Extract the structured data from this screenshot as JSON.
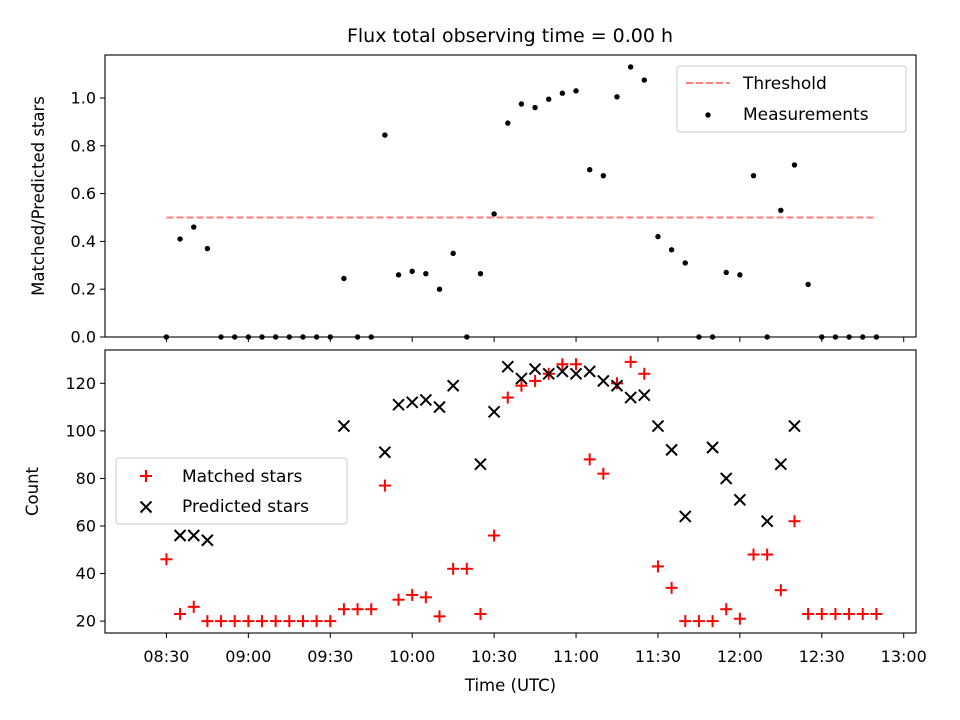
{
  "chart_data": [
    {
      "type": "scatter",
      "title": "Flux total observing time = 0.00 h",
      "ylabel": "Matched/Predicted stars",
      "ylim": [
        0,
        1.18
      ],
      "yticks": [
        "0.0",
        "0.2",
        "0.4",
        "0.6",
        "0.8",
        "1.0"
      ],
      "legend_position": "top-right",
      "threshold": {
        "name": "Threshold",
        "value": 0.5,
        "x_start": "08:30",
        "x_end": "12:50",
        "color": "#ff7f7f",
        "style": "dashed"
      },
      "series": [
        {
          "name": "Measurements",
          "color": "#000000",
          "marker": "dot",
          "x": [
            "08:30",
            "08:35",
            "08:40",
            "08:45",
            "08:50",
            "08:55",
            "09:00",
            "09:05",
            "09:10",
            "09:15",
            "09:20",
            "09:25",
            "09:30",
            "09:35",
            "09:40",
            "09:45",
            "09:50",
            "09:55",
            "10:00",
            "10:05",
            "10:10",
            "10:15",
            "10:20",
            "10:25",
            "10:30",
            "10:35",
            "10:40",
            "10:45",
            "10:50",
            "10:55",
            "11:00",
            "11:05",
            "11:10",
            "11:15",
            "11:20",
            "11:25",
            "11:30",
            "11:35",
            "11:40",
            "11:45",
            "11:50",
            "11:55",
            "12:00",
            "12:05",
            "12:10",
            "12:15",
            "12:20",
            "12:25",
            "12:30",
            "12:35",
            "12:40",
            "12:45",
            "12:50"
          ],
          "y": [
            0.0,
            0.41,
            0.46,
            0.37,
            0.0,
            0.0,
            0.0,
            0.0,
            0.0,
            0.0,
            0.0,
            0.0,
            0.0,
            0.245,
            0.0,
            0.0,
            0.845,
            0.26,
            0.275,
            0.265,
            0.2,
            0.35,
            0.0,
            0.265,
            0.515,
            0.895,
            0.975,
            0.96,
            0.995,
            1.02,
            1.03,
            0.7,
            0.675,
            1.005,
            1.13,
            1.075,
            0.42,
            0.365,
            0.31,
            0.0,
            0.0,
            0.27,
            0.26,
            0.675,
            0.0,
            0.53,
            0.72,
            0.22,
            0.0,
            0.0,
            0.0,
            0.0,
            0.0
          ]
        }
      ]
    },
    {
      "type": "scatter",
      "xlabel": "Time (UTC)",
      "ylabel": "Count",
      "ylim": [
        15,
        134
      ],
      "yticks": [
        "20",
        "40",
        "60",
        "80",
        "100",
        "120"
      ],
      "xticks": [
        "08:30",
        "09:00",
        "09:30",
        "10:00",
        "10:30",
        "11:00",
        "11:30",
        "12:00",
        "12:30",
        "13:00"
      ],
      "legend_position": "center-left",
      "series": [
        {
          "name": "Matched stars",
          "color": "#ff0000",
          "marker": "plus",
          "x": [
            "08:30",
            "08:35",
            "08:40",
            "08:45",
            "08:50",
            "08:55",
            "09:00",
            "09:05",
            "09:10",
            "09:15",
            "09:20",
            "09:25",
            "09:30",
            "09:35",
            "09:40",
            "09:45",
            "09:50",
            "09:55",
            "10:00",
            "10:05",
            "10:10",
            "10:15",
            "10:20",
            "10:25",
            "10:30",
            "10:35",
            "10:40",
            "10:45",
            "10:50",
            "10:55",
            "11:00",
            "11:05",
            "11:10",
            "11:15",
            "11:20",
            "11:25",
            "11:30",
            "11:35",
            "11:40",
            "11:45",
            "11:50",
            "11:55",
            "12:00",
            "12:05",
            "12:10",
            "12:15",
            "12:20",
            "12:25",
            "12:30",
            "12:35",
            "12:40",
            "12:45",
            "12:50"
          ],
          "y": [
            46,
            23,
            26,
            20,
            20,
            20,
            20,
            20,
            20,
            20,
            20,
            20,
            20,
            25,
            25,
            25,
            77,
            29,
            31,
            30,
            22,
            42,
            42,
            23,
            56,
            114,
            119,
            121,
            124,
            128,
            128,
            88,
            82,
            120,
            129,
            124,
            43,
            34,
            20,
            20,
            20,
            25,
            21,
            48,
            48,
            33,
            62,
            23,
            23,
            23,
            23,
            23,
            23
          ]
        },
        {
          "name": "Predicted stars",
          "color": "#000000",
          "marker": "x",
          "x": [
            "08:35",
            "08:40",
            "08:45",
            "09:35",
            "09:50",
            "09:55",
            "10:00",
            "10:05",
            "10:10",
            "10:15",
            "10:25",
            "10:30",
            "10:35",
            "10:40",
            "10:45",
            "10:50",
            "10:55",
            "11:00",
            "11:05",
            "11:10",
            "11:15",
            "11:20",
            "11:25",
            "11:30",
            "11:35",
            "11:40",
            "11:50",
            "11:55",
            "12:00",
            "12:10",
            "12:15",
            "12:20"
          ],
          "y": [
            56,
            56,
            54,
            102,
            91,
            111,
            112,
            113,
            110,
            119,
            86,
            108,
            127,
            122,
            126,
            124,
            125,
            124,
            125,
            121,
            119,
            114,
            115,
            102,
            92,
            64,
            93,
            80,
            71,
            62,
            86,
            102
          ]
        }
      ]
    }
  ]
}
